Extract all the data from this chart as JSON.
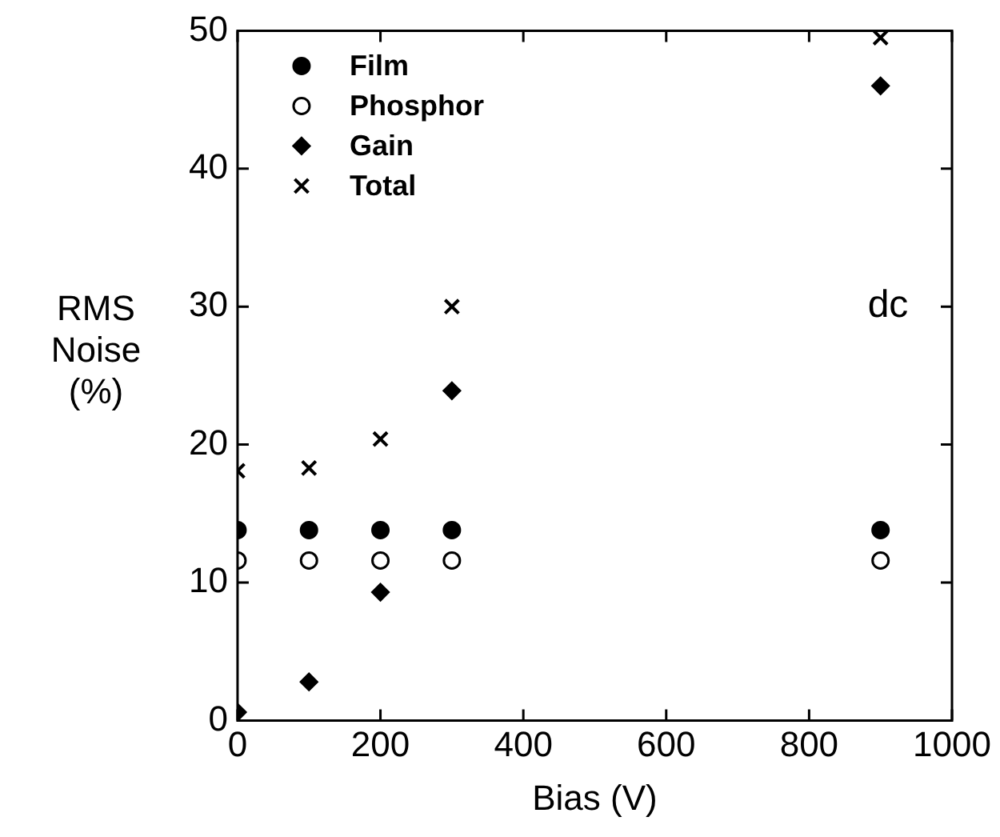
{
  "chart_data": {
    "type": "scatter",
    "xlabel": "Bias (V)",
    "ylabel": "RMS Noise (%)",
    "xlim": [
      0,
      1000
    ],
    "xticks": [
      0,
      200,
      400,
      600,
      800,
      1000
    ],
    "ylim": [
      0,
      50
    ],
    "yticks": [
      0,
      10,
      20,
      30,
      40,
      50
    ],
    "grid": false,
    "legend": "top left",
    "annotations": [
      "dc"
    ],
    "series": [
      {
        "name": "Film",
        "color": "#000000",
        "marker": "circle",
        "x": [
          0,
          100,
          200,
          300,
          900
        ],
        "values": [
          13.8,
          13.8,
          13.8,
          13.8,
          13.8
        ]
      },
      {
        "name": "Phosphor",
        "color": "#ffffff",
        "marker": "circle",
        "x": [
          0,
          100,
          200,
          300,
          900
        ],
        "values": [
          11.6,
          11.6,
          11.6,
          11.6,
          11.6
        ]
      },
      {
        "name": "Gain",
        "color": "#000000",
        "marker": "diamond",
        "x": [
          0,
          100,
          200,
          300,
          900
        ],
        "values": [
          0.6,
          2.8,
          9.3,
          23.9,
          46
        ]
      },
      {
        "name": "Total",
        "color": "#000000",
        "marker": "cross",
        "x": [
          0,
          100,
          200,
          300,
          900
        ],
        "values": [
          18.1,
          18.3,
          20.4,
          30,
          49.5
        ]
      }
    ]
  }
}
